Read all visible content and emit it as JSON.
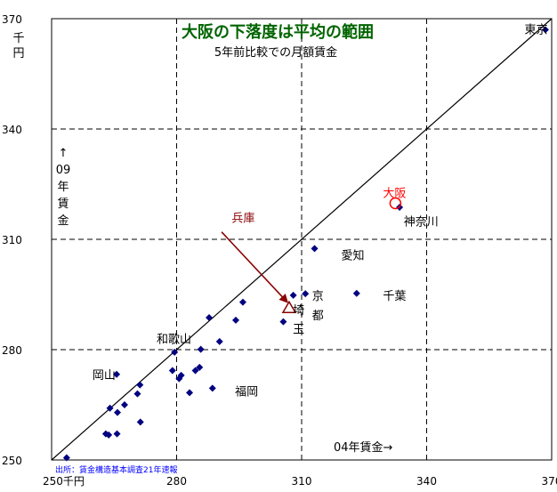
{
  "chart_data": {
    "type": "scatter",
    "title": "大阪の下落度は平均の範囲",
    "subtitle": "5年前比較での月額賃金",
    "source": "出所：賃金構造基本調査21年速報",
    "xlabel": "04年賃金→",
    "ylabel": "↑ 09 年 賃 金",
    "y_unit": "千円",
    "xlim": [
      250,
      370
    ],
    "ylim": [
      250,
      370
    ],
    "grid": true,
    "x_ticks": [
      {
        "value": 250,
        "label": "250千円"
      },
      {
        "value": 280,
        "label": "280"
      },
      {
        "value": 310,
        "label": "310"
      },
      {
        "value": 340,
        "label": "340"
      },
      {
        "value": 370,
        "label": "370"
      }
    ],
    "y_ticks": [
      {
        "value": 250,
        "label": "250"
      },
      {
        "value": 280,
        "label": "280"
      },
      {
        "value": 310,
        "label": "310"
      },
      {
        "value": 340,
        "label": "340"
      },
      {
        "value": 370,
        "label": "370"
      }
    ],
    "reference_line": {
      "from": [
        250,
        250
      ],
      "to": [
        370,
        370
      ]
    },
    "colors": {
      "points": "#000080",
      "title": "#006400",
      "highlight": "#ff0000",
      "arrow": "#8b0000",
      "source": "#0000ff"
    },
    "points": [
      {
        "x": 368.5,
        "y": 367.0
      },
      {
        "x": 333.5,
        "y": 318.7
      },
      {
        "x": 313.1,
        "y": 307.5
      },
      {
        "x": 323.2,
        "y": 295.3
      },
      {
        "x": 308.0,
        "y": 294.8
      },
      {
        "x": 310.9,
        "y": 295.2
      },
      {
        "x": 305.6,
        "y": 287.6
      },
      {
        "x": 295.9,
        "y": 292.9
      },
      {
        "x": 294.2,
        "y": 288.0
      },
      {
        "x": 287.8,
        "y": 288.7
      },
      {
        "x": 290.3,
        "y": 282.2
      },
      {
        "x": 285.8,
        "y": 280.1
      },
      {
        "x": 279.5,
        "y": 279.3
      },
      {
        "x": 279.0,
        "y": 274.3
      },
      {
        "x": 281.1,
        "y": 273.0
      },
      {
        "x": 280.6,
        "y": 272.1
      },
      {
        "x": 284.5,
        "y": 274.3
      },
      {
        "x": 285.5,
        "y": 275.2
      },
      {
        "x": 283.1,
        "y": 268.3
      },
      {
        "x": 288.6,
        "y": 269.5
      },
      {
        "x": 265.6,
        "y": 273.3
      },
      {
        "x": 271.2,
        "y": 270.4
      },
      {
        "x": 270.6,
        "y": 268.0
      },
      {
        "x": 267.5,
        "y": 265.0
      },
      {
        "x": 264.0,
        "y": 264.1
      },
      {
        "x": 265.8,
        "y": 262.9
      },
      {
        "x": 271.3,
        "y": 260.3
      },
      {
        "x": 263.0,
        "y": 257.1
      },
      {
        "x": 263.7,
        "y": 256.8
      },
      {
        "x": 265.7,
        "y": 257.1
      },
      {
        "x": 253.6,
        "y": 250.6
      }
    ],
    "labels": [
      {
        "text": "東京",
        "x": 363.5,
        "y": 366.0,
        "color": "#000000"
      },
      {
        "text": "大阪",
        "x": 329.5,
        "y": 321.5,
        "color": "#ff0000"
      },
      {
        "text": "神奈川",
        "x": 334.5,
        "y": 313.7,
        "color": "#000000"
      },
      {
        "text": "愛知",
        "x": 319.5,
        "y": 304.6,
        "color": "#000000"
      },
      {
        "text": "千葉",
        "x": 329.5,
        "y": 293.5,
        "color": "#000000"
      },
      {
        "text": "京",
        "x": 312.5,
        "y": 293.5,
        "color": "#000000"
      },
      {
        "text": "都",
        "x": 312.5,
        "y": 288.2,
        "color": "#000000"
      },
      {
        "text": "埼",
        "x": 307.9,
        "y": 289.7,
        "color": "#000000"
      },
      {
        "text": "玉",
        "x": 307.9,
        "y": 284.5,
        "color": "#000000"
      },
      {
        "text": "和歌山",
        "x": 275.2,
        "y": 281.8,
        "color": "#000000"
      },
      {
        "text": "岡山",
        "x": 259.8,
        "y": 272.0,
        "color": "#000000"
      },
      {
        "text": "福岡",
        "x": 294.0,
        "y": 267.6,
        "color": "#000000"
      },
      {
        "text": "兵庫",
        "x": 293.2,
        "y": 314.7,
        "color": "#8b0000"
      }
    ],
    "highlights": [
      {
        "name": "大阪",
        "shape": "circle",
        "x": 332.5,
        "y": 319.8,
        "color": "#ff0000"
      },
      {
        "name": "兵庫",
        "shape": "triangle",
        "x": 307.0,
        "y": 291.3,
        "color": "#8b0000"
      }
    ],
    "arrow": {
      "from": [
        290.8,
        312.0
      ],
      "to": [
        306.5,
        293.0
      ],
      "color": "#8b0000"
    }
  }
}
